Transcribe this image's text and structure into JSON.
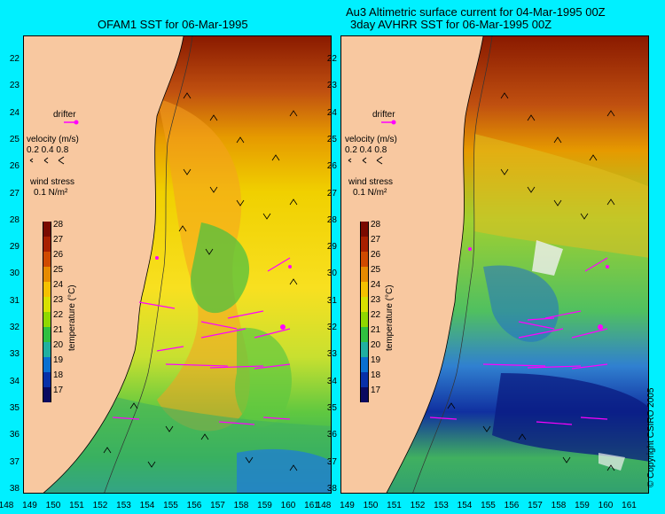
{
  "titles": {
    "left": "OFAM1 SST for 06-Mar-1995",
    "right_line1": "Au3 Altimetric surface current for 04-Mar-1995 00Z",
    "right_line2": "3day AVHRR SST for 06-Mar-1995 00Z"
  },
  "lat_labels": [
    "22",
    "23",
    "24",
    "25",
    "26",
    "27",
    "28",
    "29",
    "30",
    "31",
    "32",
    "33",
    "34",
    "35",
    "36",
    "37",
    "38"
  ],
  "lon_labels": [
    "148",
    "149",
    "150",
    "151",
    "152",
    "153",
    "154",
    "155",
    "156",
    "157",
    "158",
    "159",
    "160",
    "161"
  ],
  "legend": {
    "drifter": "drifter",
    "velocity_title": "velocity (m/s)",
    "velocity_scale": "0.2 0.4 0.8",
    "wind_title": "wind stress",
    "wind_value": "0.1 N/m²"
  },
  "colorbar": {
    "title": "temperature (°C)",
    "ticks": [
      "28",
      "27",
      "26",
      "25",
      "24",
      "23",
      "22",
      "21",
      "20",
      "19",
      "18",
      "17"
    ],
    "colors": [
      "#7a0a00",
      "#a82000",
      "#d04a00",
      "#e68a00",
      "#f5c000",
      "#d8e000",
      "#90d800",
      "#30c040",
      "#20b0a0",
      "#0a70d0",
      "#0830a8",
      "#0a0a60"
    ]
  },
  "copyright": "© Copyright CSIRO 2005",
  "colors": {
    "ocean_bg": "#00f0ff",
    "land": "#f8c8a0",
    "vector_drifter": "#ff00ff"
  }
}
